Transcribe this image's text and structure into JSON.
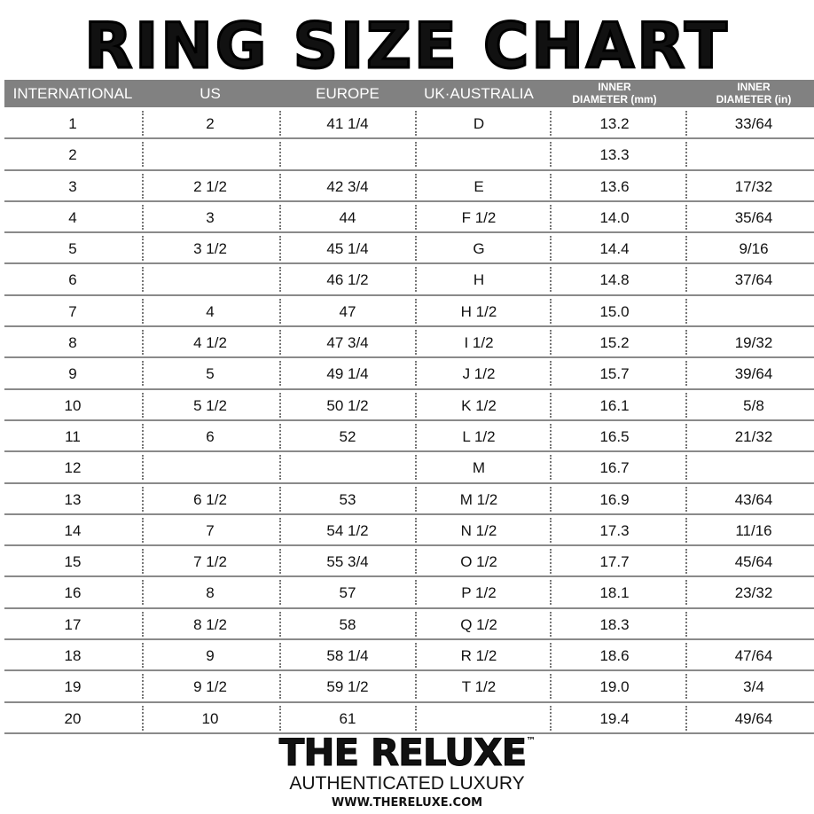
{
  "title": "RING SIZE CHART",
  "colors": {
    "header_bg": "#818181",
    "header_text": "#ffffff",
    "text": "#111111"
  },
  "headers": [
    {
      "l1": "INTERNATIONAL"
    },
    {
      "l1": "US"
    },
    {
      "l1": "EUROPE"
    },
    {
      "l1": "UK·AUSTRALIA"
    },
    {
      "l1": "INNER",
      "l2": "DIAMETER (mm)"
    },
    {
      "l1": "INNER",
      "l2": "DIAMETER (in)"
    }
  ],
  "rows": [
    [
      "1",
      "2",
      "41 1/4",
      "D",
      "13.2",
      "33/64"
    ],
    [
      "2",
      "",
      "",
      "",
      "13.3",
      ""
    ],
    [
      "3",
      "2 1/2",
      "42 3/4",
      "E",
      "13.6",
      "17/32"
    ],
    [
      "4",
      "3",
      "44",
      "F 1/2",
      "14.0",
      "35/64"
    ],
    [
      "5",
      "3 1/2",
      "45 1/4",
      "G",
      "14.4",
      "9/16"
    ],
    [
      "6",
      "",
      "46 1/2",
      "H",
      "14.8",
      "37/64"
    ],
    [
      "7",
      "4",
      "47",
      "H 1/2",
      "15.0",
      ""
    ],
    [
      "8",
      "4 1/2",
      "47 3/4",
      "I 1/2",
      "15.2",
      "19/32"
    ],
    [
      "9",
      "5",
      "49 1/4",
      "J 1/2",
      "15.7",
      "39/64"
    ],
    [
      "10",
      "5 1/2",
      "50 1/2",
      "K 1/2",
      "16.1",
      "5/8"
    ],
    [
      "11",
      "6",
      "52",
      "L 1/2",
      "16.5",
      "21/32"
    ],
    [
      "12",
      "",
      "",
      "M",
      "16.7",
      ""
    ],
    [
      "13",
      "6 1/2",
      "53",
      "M 1/2",
      "16.9",
      "43/64"
    ],
    [
      "14",
      "7",
      "54 1/2",
      "N 1/2",
      "17.3",
      "11/16"
    ],
    [
      "15",
      "7 1/2",
      "55 3/4",
      "O 1/2",
      "17.7",
      "45/64"
    ],
    [
      "16",
      "8",
      "57",
      "P 1/2",
      "18.1",
      "23/32"
    ],
    [
      "17",
      "8 1/2",
      "58",
      "Q 1/2",
      "18.3",
      ""
    ],
    [
      "18",
      "9",
      "58 1/4",
      "R 1/2",
      "18.6",
      "47/64"
    ],
    [
      "19",
      "9 1/2",
      "59 1/2",
      "T 1/2",
      "19.0",
      "3/4"
    ],
    [
      "20",
      "10",
      "61",
      "",
      "19.4",
      "49/64"
    ]
  ],
  "brand": {
    "name": "THE RELUXE",
    "tm": "™",
    "tagline": "AUTHENTICATED LUXURY",
    "url": "WWW.THERELUXE.COM"
  }
}
